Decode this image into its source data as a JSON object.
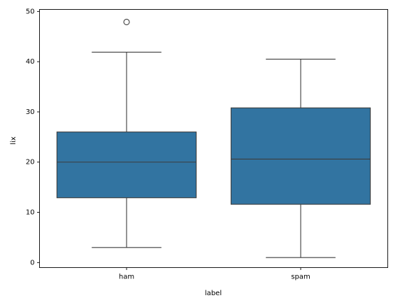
{
  "chart_data": {
    "type": "box",
    "xlabel": "label",
    "ylabel": "lix",
    "categories": [
      "ham",
      "spam"
    ],
    "ylim": [
      -1,
      50.4
    ],
    "yticks": [
      0,
      10,
      20,
      30,
      40,
      50
    ],
    "box_color": "#3274a1",
    "line_color": "#3d3d3d",
    "boxes": [
      {
        "label": "ham",
        "whisker_low": 3,
        "q1": 12.9,
        "median": 20,
        "q3": 26,
        "whisker_high": 41.9,
        "outliers": [
          47.9
        ]
      },
      {
        "label": "spam",
        "whisker_low": 1,
        "q1": 11.6,
        "median": 20.6,
        "q3": 30.8,
        "whisker_high": 40.5,
        "outliers": []
      }
    ]
  }
}
